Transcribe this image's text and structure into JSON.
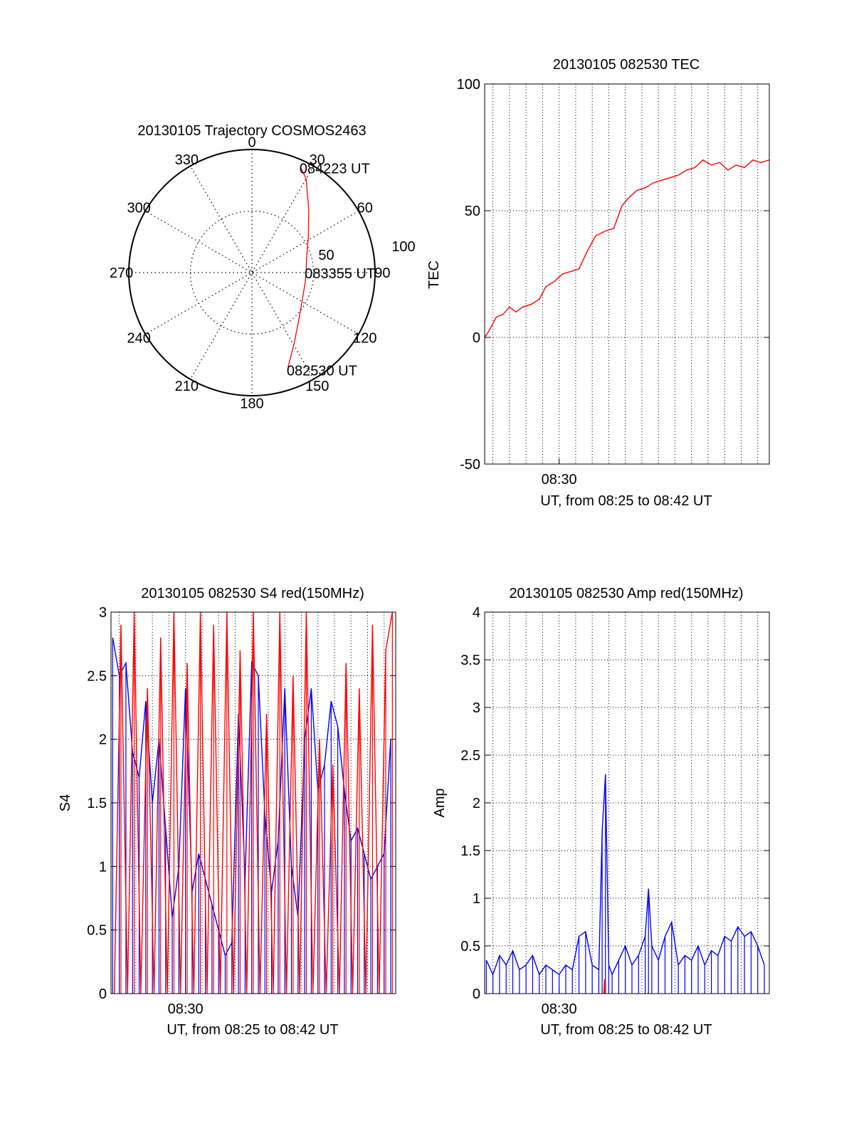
{
  "colors": {
    "red": "#ff0000",
    "blue": "#0000ff",
    "axis": "#000000",
    "grid": "#000000"
  },
  "chart_data": [
    {
      "id": "trajectory",
      "type": "polar",
      "title": "20130105 Trajectory COSMOS2463",
      "angle_labels": [
        "0",
        "30",
        "60",
        "90",
        "120",
        "150",
        "180",
        "210",
        "240",
        "270",
        "300",
        "330"
      ],
      "radial_labels": [
        "50",
        "100"
      ],
      "rlim": [
        0,
        100
      ],
      "grid": true,
      "track": [
        {
          "az": 159,
          "r": 82
        },
        {
          "az": 150,
          "r": 68
        },
        {
          "az": 138,
          "r": 56
        },
        {
          "az": 120,
          "r": 47
        },
        {
          "az": 100,
          "r": 44
        },
        {
          "az": 90,
          "r": 44
        },
        {
          "az": 75,
          "r": 46
        },
        {
          "az": 58,
          "r": 54
        },
        {
          "az": 42,
          "r": 69
        },
        {
          "az": 30,
          "r": 88
        },
        {
          "az": 25,
          "r": 94
        }
      ],
      "annotations": [
        {
          "text": "084223 UT",
          "at_index": 10
        },
        {
          "text": "083355 UT",
          "at_index": 5
        },
        {
          "text": "082530 UT",
          "at_index": 0
        }
      ]
    },
    {
      "id": "tec",
      "type": "line",
      "title": "20130105 082530 TEC",
      "xlabel": "UT, from 08:25 to 08:42 UT",
      "ylabel": "TEC",
      "xlim_minutes": [
        25.5,
        42.7
      ],
      "ylim": [
        -50,
        100
      ],
      "yticks": [
        -50,
        0,
        50,
        100
      ],
      "ytick_labels": [
        "-50",
        "0",
        "50",
        "100"
      ],
      "xtick_value": 30,
      "xtick_label": "08:30",
      "grid": true,
      "series": [
        {
          "color": "red",
          "x": [
            25.5,
            25.8,
            26.2,
            26.6,
            27.0,
            27.4,
            27.8,
            28.3,
            28.8,
            29.2,
            29.7,
            30.2,
            30.7,
            31.2,
            31.7,
            32.2,
            32.8,
            33.3,
            33.8,
            34.2,
            34.7,
            35.2,
            35.7,
            36.2,
            36.7,
            37.2,
            37.7,
            38.2,
            38.7,
            39.2,
            39.7,
            40.2,
            40.7,
            41.2,
            41.7,
            42.2,
            42.7
          ],
          "y": [
            0,
            3,
            8,
            9,
            12,
            10,
            12,
            13,
            15,
            20,
            22,
            25,
            26,
            27,
            34,
            40,
            42,
            43,
            52,
            55,
            58,
            59,
            61,
            62,
            63,
            64,
            66,
            67,
            70,
            68,
            69,
            66,
            68,
            67,
            70,
            69,
            70
          ]
        }
      ]
    },
    {
      "id": "s4",
      "type": "line",
      "title": "20130105 082530 S4 red(150MHz)",
      "xlabel": "UT, from 08:25 to 08:42 UT",
      "ylabel": "S4",
      "xlim_minutes": [
        25.5,
        42.7
      ],
      "ylim": [
        0,
        3
      ],
      "yticks": [
        0,
        0.5,
        1,
        1.5,
        2,
        2.5,
        3
      ],
      "ytick_labels": [
        "0",
        "0.5",
        "1",
        "1.5",
        "2",
        "2.5",
        "3"
      ],
      "xtick_value": 30,
      "xtick_label": "08:30",
      "grid": true,
      "series": [
        {
          "color": "blue",
          "x": [
            25.6,
            26.0,
            26.4,
            26.8,
            27.2,
            27.6,
            28.0,
            28.4,
            28.8,
            29.2,
            29.6,
            30.0,
            30.4,
            30.8,
            31.2,
            31.6,
            32.0,
            32.4,
            32.8,
            33.2,
            33.6,
            34.0,
            34.4,
            34.8,
            35.2,
            35.6,
            36.0,
            36.4,
            36.8,
            37.2,
            37.6,
            38.0,
            38.4,
            38.8,
            39.2,
            39.6,
            40.0,
            40.4,
            40.8,
            41.2,
            41.6,
            42.0,
            42.4
          ],
          "y": [
            2.8,
            2.5,
            2.6,
            1.9,
            1.7,
            2.3,
            1.5,
            2.0,
            1.3,
            0.6,
            1.0,
            2.4,
            0.8,
            1.1,
            0.9,
            0.7,
            0.5,
            0.3,
            0.4,
            2.2,
            0.9,
            2.6,
            2.5,
            1.4,
            0.8,
            1.2,
            2.4,
            1.0,
            0.6,
            2.0,
            2.4,
            1.6,
            1.8,
            2.3,
            2.1,
            1.6,
            1.2,
            1.3,
            1.1,
            0.9,
            1.0,
            1.1,
            2.0
          ]
        },
        {
          "color": "red",
          "x": [
            25.7,
            26.1,
            26.5,
            26.9,
            27.3,
            27.7,
            28.1,
            28.5,
            28.9,
            29.3,
            29.7,
            30.1,
            30.5,
            30.9,
            31.3,
            31.7,
            32.1,
            32.5,
            32.9,
            33.3,
            33.7,
            34.1,
            34.5,
            34.9,
            35.3,
            35.7,
            36.1,
            36.5,
            36.9,
            37.3,
            37.7,
            38.1,
            38.5,
            38.9,
            39.3,
            39.7,
            40.1,
            40.5,
            40.9,
            41.3,
            41.7,
            42.1,
            42.5
          ],
          "y": [
            0.0,
            2.9,
            0.0,
            3.0,
            0.0,
            2.4,
            0.0,
            2.8,
            0.0,
            3.0,
            0.0,
            2.6,
            0.0,
            3.0,
            0.0,
            2.9,
            0.0,
            3.0,
            0.0,
            2.7,
            0.0,
            3.0,
            0.0,
            2.2,
            0.0,
            3.0,
            0.0,
            2.5,
            0.0,
            3.0,
            0.0,
            2.0,
            0.0,
            1.8,
            0.0,
            2.6,
            0.0,
            2.4,
            0.0,
            2.9,
            0.0,
            2.7,
            3.0
          ]
        }
      ]
    },
    {
      "id": "amp",
      "type": "line",
      "title": "20130105 082530 Amp red(150MHz)",
      "xlabel": "UT, from 08:25 to 08:42 UT",
      "ylabel": "Amp",
      "xlim_minutes": [
        25.5,
        42.7
      ],
      "ylim": [
        0,
        4
      ],
      "yticks": [
        0,
        0.5,
        1,
        1.5,
        2,
        2.5,
        3,
        3.5,
        4
      ],
      "ytick_labels": [
        "0",
        "0.5",
        "1",
        "1.5",
        "2",
        "2.5",
        "3",
        "3.5",
        "4"
      ],
      "xtick_value": 30,
      "xtick_label": "08:30",
      "grid": true,
      "series": [
        {
          "color": "blue",
          "x": [
            25.6,
            26.0,
            26.4,
            26.8,
            27.2,
            27.6,
            28.0,
            28.4,
            28.8,
            29.2,
            29.6,
            30.0,
            30.4,
            30.8,
            31.2,
            31.6,
            32.0,
            32.4,
            32.6,
            32.8,
            33.0,
            33.2,
            33.6,
            34.0,
            34.4,
            34.8,
            35.2,
            35.4,
            35.6,
            36.0,
            36.4,
            36.8,
            37.2,
            37.6,
            38.0,
            38.4,
            38.8,
            39.2,
            39.6,
            40.0,
            40.4,
            40.8,
            41.2,
            41.6,
            42.0,
            42.4
          ],
          "y": [
            0.35,
            0.2,
            0.4,
            0.3,
            0.45,
            0.25,
            0.3,
            0.4,
            0.2,
            0.3,
            0.25,
            0.2,
            0.3,
            0.25,
            0.6,
            0.65,
            0.3,
            0.25,
            1.7,
            2.3,
            0.3,
            0.2,
            0.35,
            0.5,
            0.3,
            0.4,
            0.6,
            1.1,
            0.5,
            0.35,
            0.6,
            0.75,
            0.3,
            0.4,
            0.35,
            0.5,
            0.3,
            0.45,
            0.4,
            0.6,
            0.55,
            0.7,
            0.6,
            0.65,
            0.5,
            0.3
          ]
        },
        {
          "color": "red",
          "x": [
            32.7,
            32.75,
            32.8
          ],
          "y": [
            0.0,
            0.15,
            0.0
          ]
        }
      ]
    }
  ]
}
